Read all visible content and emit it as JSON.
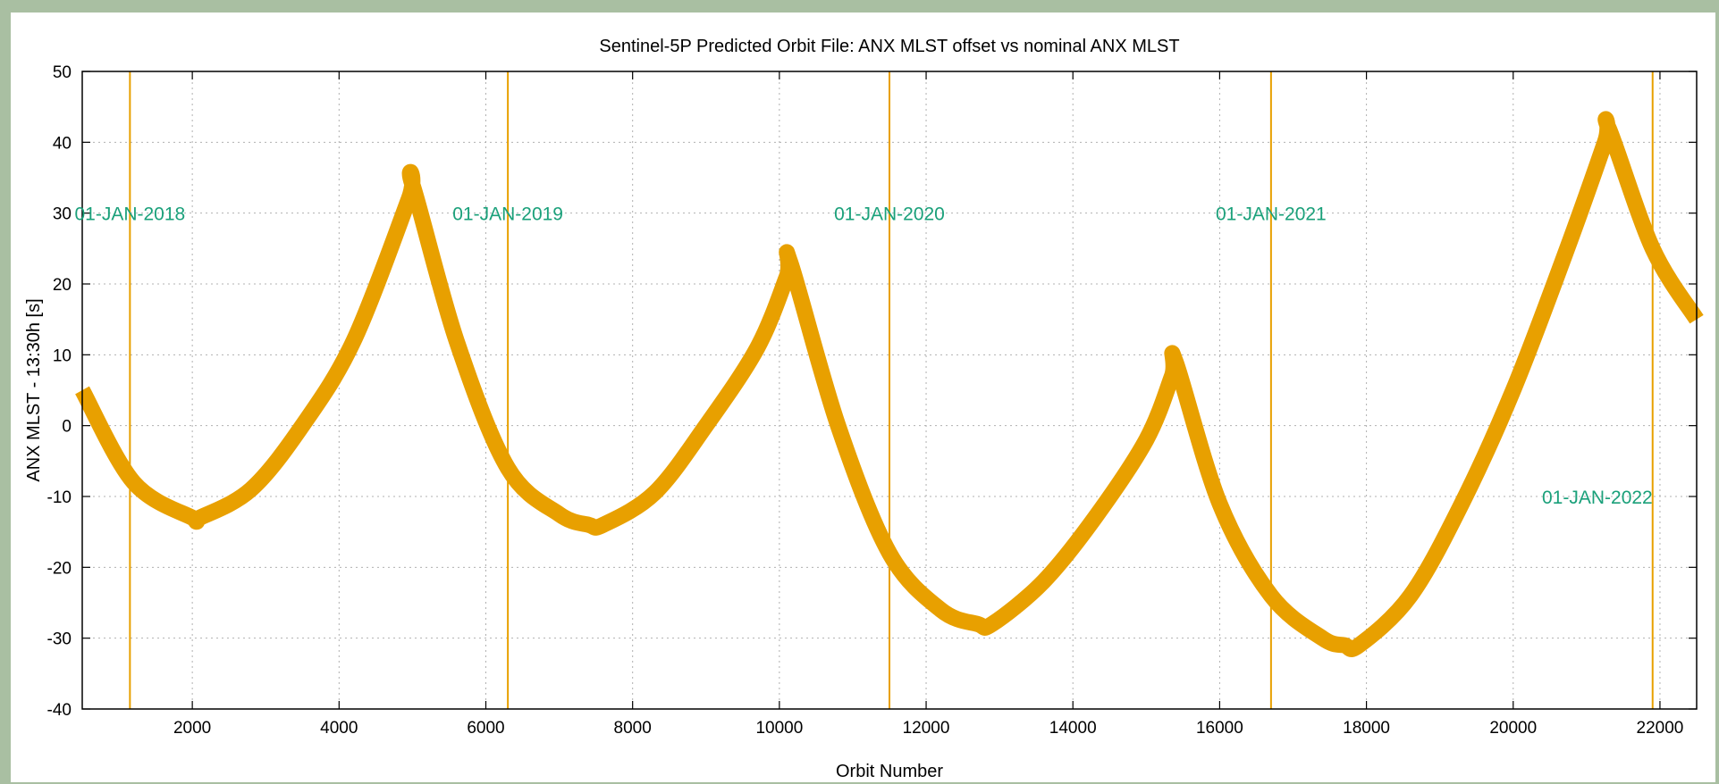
{
  "chart_data": {
    "type": "line",
    "title": "Sentinel-5P Predicted Orbit File: ANX MLST offset vs nominal ANX MLST",
    "xlabel": "Orbit Number",
    "ylabel": "ANX MLST - 13:30h [s]",
    "xlim": [
      500,
      22500
    ],
    "ylim": [
      -40,
      50
    ],
    "xticks": [
      2000,
      4000,
      6000,
      8000,
      10000,
      12000,
      14000,
      16000,
      18000,
      20000,
      22000
    ],
    "yticks": [
      -40,
      -30,
      -20,
      -10,
      0,
      10,
      20,
      30,
      40,
      50
    ],
    "grid": true,
    "colors": {
      "series": "#e8a000",
      "annotation": "#1aa07a",
      "axis": "#000000",
      "grid": "#b0b0b0"
    },
    "series": [
      {
        "x": [
          500,
          1200,
          2000,
          2100,
          2800,
          3500,
          4200,
          4950,
          5000,
          5600,
          6300,
          7000,
          7400,
          7600,
          8300,
          9000,
          9700,
          10100,
          10150,
          10800,
          11500,
          12200,
          12700,
          12900,
          13600,
          14300,
          15000,
          15350,
          15400,
          16000,
          16700,
          17400,
          17700,
          17900,
          18600,
          19300,
          20000,
          20700,
          21250,
          21300,
          21900,
          22500
        ],
        "y": [
          5,
          -8,
          -13,
          -13,
          -9,
          0,
          12,
          32,
          34,
          12,
          -6,
          -12.5,
          -14,
          -14,
          -9.5,
          0,
          11,
          21,
          23,
          0,
          -18,
          -26,
          -28,
          -28,
          -22,
          -13,
          -2,
          7,
          9,
          -11,
          -24,
          -30,
          -31,
          -31,
          -24,
          -11,
          5,
          24,
          40,
          42,
          25,
          15
        ]
      }
    ],
    "annotations": [
      {
        "x": 1150,
        "label": "01-JAN-2018",
        "label_y": 30,
        "label_anchor": "middle"
      },
      {
        "x": 6300,
        "label": "01-JAN-2019",
        "label_y": 30,
        "label_anchor": "middle"
      },
      {
        "x": 11500,
        "label": "01-JAN-2020",
        "label_y": 30,
        "label_anchor": "middle"
      },
      {
        "x": 16700,
        "label": "01-JAN-2021",
        "label_y": 30,
        "label_anchor": "middle"
      },
      {
        "x": 21900,
        "label": "01-JAN-2022",
        "label_y": -10,
        "label_anchor": "end"
      }
    ]
  }
}
